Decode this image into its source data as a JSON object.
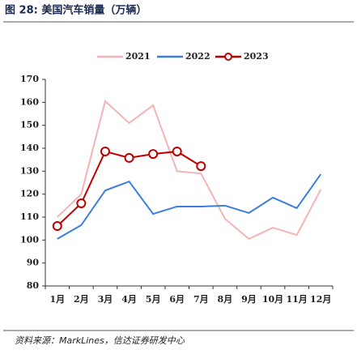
{
  "title": "图 28:  美国汽车销量（万辆）",
  "source": "资料来源：MarkLines，信达证券研发中心",
  "chart_data": {
    "type": "line",
    "categories": [
      "1月",
      "2月",
      "3月",
      "4月",
      "5月",
      "6月",
      "7月",
      "8月",
      "9月",
      "10月",
      "11月",
      "12月"
    ],
    "series": [
      {
        "name": "2021",
        "color": "#f4b4b4",
        "values": [
          110,
          120,
          160.5,
          151,
          158.7,
          130,
          129,
          109.3,
          100.5,
          105.4,
          102.2,
          122
        ]
      },
      {
        "name": "2022",
        "color": "#3a7fe0",
        "values": [
          100.5,
          106.5,
          121.6,
          125.5,
          111.4,
          114.6,
          114.6,
          115,
          111.8,
          118.5,
          113.9,
          128.7
        ]
      },
      {
        "name": "2023",
        "color": "#c00000",
        "marker": true,
        "values": [
          106.1,
          116,
          138.6,
          135.8,
          137.5,
          138.6,
          132.2,
          null,
          null,
          null,
          null,
          null
        ]
      }
    ],
    "ylim": [
      80,
      170
    ],
    "yticks": [
      80,
      90,
      100,
      110,
      120,
      130,
      140,
      150,
      160,
      170
    ],
    "legend": "top"
  }
}
